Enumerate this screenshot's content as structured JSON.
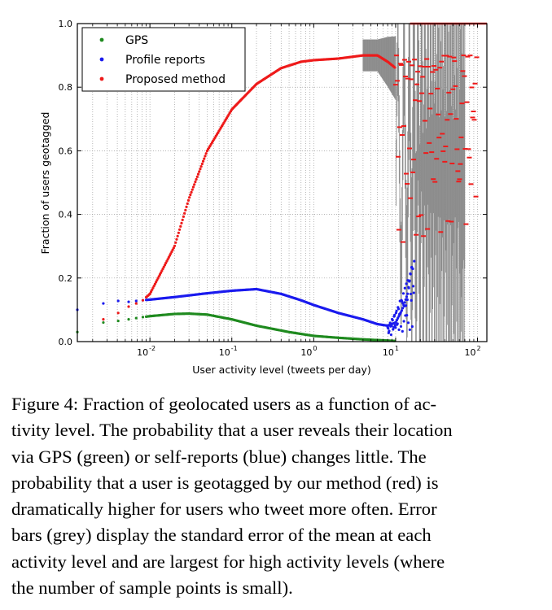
{
  "chart_data": {
    "type": "scatter",
    "xscale": "log",
    "xlim": [
      0.0013,
      130
    ],
    "ylim": [
      0.0,
      1.0
    ],
    "xlabel": "User activity level (tweets per day)",
    "ylabel": "Fraction of users geotagged",
    "y_ticks": [
      "0.0",
      "0.2",
      "0.4",
      "0.6",
      "0.8",
      "1.0"
    ],
    "y_tick_values": [
      0.0,
      0.2,
      0.4,
      0.6,
      0.8,
      1.0
    ],
    "x_ticks": [
      {
        "value": 0.01,
        "base": "10",
        "exp": "-2"
      },
      {
        "value": 0.1,
        "base": "10",
        "exp": "-1"
      },
      {
        "value": 1,
        "base": "10",
        "exp": "0"
      },
      {
        "value": 10,
        "base": "10",
        "exp": "1"
      },
      {
        "value": 100,
        "base": "10",
        "exp": "2"
      }
    ],
    "grid": true,
    "legend_position": "top-left",
    "series": [
      {
        "name": "GPS",
        "color": "#1f8a1f",
        "points": [
          [
            0.0013,
            0.03
          ],
          [
            0.0027,
            0.06
          ],
          [
            0.0041,
            0.065
          ],
          [
            0.0055,
            0.07
          ],
          [
            0.0068,
            0.074
          ],
          [
            0.0082,
            0.077
          ],
          [
            0.01,
            0.08
          ],
          [
            0.02,
            0.087
          ],
          [
            0.03,
            0.088
          ],
          [
            0.05,
            0.085
          ],
          [
            0.1,
            0.07
          ],
          [
            0.2,
            0.05
          ],
          [
            0.5,
            0.03
          ],
          [
            1,
            0.018
          ],
          [
            2,
            0.012
          ],
          [
            4,
            0.007
          ],
          [
            7,
            0.004
          ],
          [
            10,
            0.002
          ]
        ]
      },
      {
        "name": "Profile reports",
        "color": "#1a1aee",
        "points": [
          [
            0.0013,
            0.1
          ],
          [
            0.0027,
            0.12
          ],
          [
            0.0041,
            0.128
          ],
          [
            0.0055,
            0.125
          ],
          [
            0.0068,
            0.128
          ],
          [
            0.0082,
            0.13
          ],
          [
            0.01,
            0.132
          ],
          [
            0.02,
            0.14
          ],
          [
            0.05,
            0.152
          ],
          [
            0.1,
            0.16
          ],
          [
            0.2,
            0.165
          ],
          [
            0.4,
            0.15
          ],
          [
            0.7,
            0.13
          ],
          [
            1,
            0.115
          ],
          [
            2,
            0.09
          ],
          [
            4,
            0.07
          ],
          [
            6,
            0.055
          ],
          [
            8,
            0.05
          ],
          [
            10,
            0.06
          ],
          [
            12,
            0.1
          ],
          [
            14,
            0.15
          ],
          [
            16,
            0.25
          ]
        ]
      },
      {
        "name": "Proposed method",
        "color": "#ee1a1a",
        "points": [
          [
            0.0027,
            0.07
          ],
          [
            0.0041,
            0.09
          ],
          [
            0.0055,
            0.11
          ],
          [
            0.0068,
            0.12
          ],
          [
            0.0082,
            0.13
          ],
          [
            0.01,
            0.15
          ],
          [
            0.02,
            0.3
          ],
          [
            0.03,
            0.45
          ],
          [
            0.05,
            0.6
          ],
          [
            0.1,
            0.73
          ],
          [
            0.2,
            0.81
          ],
          [
            0.4,
            0.86
          ],
          [
            0.7,
            0.88
          ],
          [
            1,
            0.885
          ],
          [
            2,
            0.89
          ],
          [
            4,
            0.9
          ],
          [
            6,
            0.9
          ],
          [
            8,
            0.88
          ],
          [
            10,
            0.86
          ]
        ]
      }
    ],
    "error_bar_color": "#8c8c8c"
  },
  "caption": {
    "lines": [
      "Figure 4: Fraction of geolocated users as a function of ac-",
      "tivity level. The probability that a user reveals their location",
      "via GPS (green) or self-reports (blue) changes little. The",
      "probability that a user is geotagged by our method (red) is",
      "dramatically higher for users who tweet more often. Error",
      "bars (grey) display the standard error of the mean at each",
      "activity level and are largest for high activity levels (where",
      "the number of sample points is small)."
    ]
  }
}
